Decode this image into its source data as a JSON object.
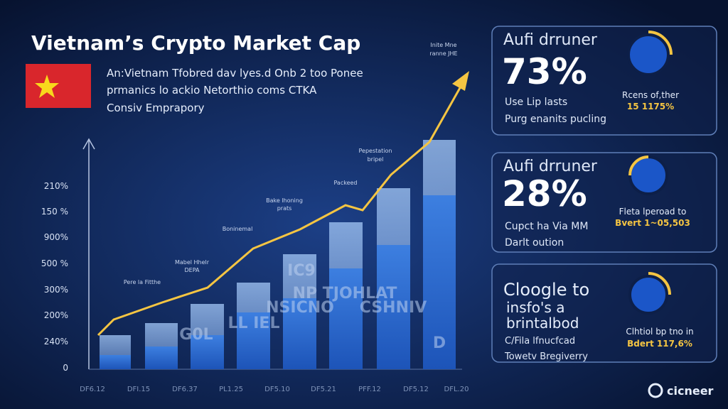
{
  "header": {
    "title": "Vietnam’s Crypto Market Cap",
    "subtitle": [
      "An:Vietnam Tfobred dav lyes.d Onb 2 too Ponee",
      "prmanics lo ackio Netorthio coms CTKA",
      "Consiv Emprapory"
    ]
  },
  "chart": {
    "y_labels": [
      "210%",
      "150 %",
      "900%",
      "500 %",
      "300%",
      "200%",
      "240%",
      "0"
    ],
    "x_labels": [
      "DF6.12",
      "DFI.15",
      "DF6.37",
      "PL1.25",
      "DF5.10",
      "DF5.21",
      "PFF.12",
      "DF5.12",
      "DFL.20"
    ],
    "annotations": [
      "Pere la Fitthe",
      "Mabel Hhelr",
      "DEPA",
      "Boninemal",
      "Bake lhoning",
      "prats",
      "Packeed",
      "Pepestation",
      "bripel",
      "Inite Mne",
      "ranne JHE"
    ],
    "bar_texts": [
      "G0L",
      "LL IEL",
      "NSICNO",
      "IC9",
      "NP TJOHLAT",
      "CSHNIV",
      "D"
    ]
  },
  "cards": [
    {
      "heading": "Aufi drruner",
      "value": "73%",
      "lines": [
        "Use Lip lasts",
        "Purg enanits pucling"
      ],
      "side": [
        "Rcens of,ther",
        "15 1175%"
      ]
    },
    {
      "heading": "Aufi drruner",
      "value": "28%",
      "lines": [
        "Cupct ha Via MM",
        "Darlt oution"
      ],
      "side": [
        "Fleta lperoad to",
        "Bvert 1~05,503"
      ]
    },
    {
      "heading": [
        "Cloogle to",
        "insfo's a",
        "brintalbod"
      ],
      "lines": [
        "C/Fila lfnucfcad",
        "Towetv Bregiverry"
      ],
      "side": [
        "Clhtiol bp tno in",
        "Bdert 117,6%"
      ]
    }
  ],
  "logo": "cicneer"
}
